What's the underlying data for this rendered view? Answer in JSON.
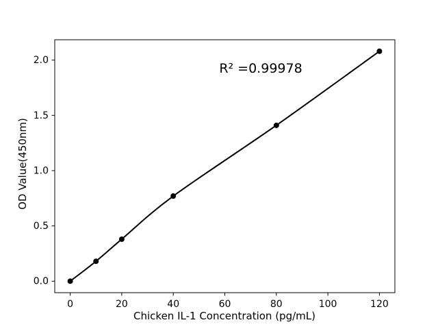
{
  "chart": {
    "annotation": "R² =0.99978",
    "xlabel": "Chicken IL-1 Concentration (pg/mL)",
    "ylabel": "OD Value(450nm)"
  },
  "chart_data": {
    "type": "scatter",
    "title": "",
    "xlabel": "Chicken IL-1 Concentration (pg/mL)",
    "ylabel": "OD Value(450nm)",
    "x": [
      0,
      10,
      20,
      40,
      80,
      120
    ],
    "y": [
      0.0,
      0.18,
      0.38,
      0.77,
      1.41,
      2.08
    ],
    "fit_line": "smooth curve through all points",
    "r_squared": 0.99978,
    "annotation_text": "R² =0.99978",
    "xlim": [
      -6,
      126
    ],
    "ylim": [
      -0.104,
      2.184
    ],
    "x_tick_values": [
      0,
      20,
      40,
      60,
      80,
      100,
      120
    ],
    "x_tick_labels": [
      "0",
      "20",
      "40",
      "60",
      "80",
      "100",
      "120"
    ],
    "y_tick_values": [
      0.0,
      0.5,
      1.0,
      1.5,
      2.0
    ],
    "y_tick_labels": [
      "0.0",
      "0.5",
      "1.0",
      "1.5",
      "2.0"
    ],
    "grid": false,
    "legend": "none",
    "marker_color": "#000000",
    "line_color": "#000000",
    "axis_color": "#000000",
    "background_color": "#ffffff"
  }
}
